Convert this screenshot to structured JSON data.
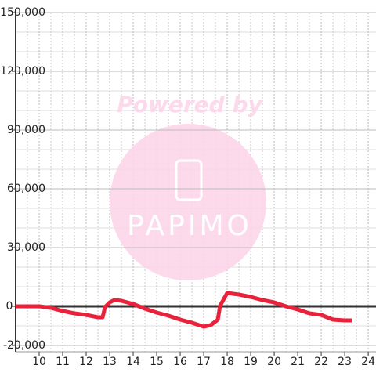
{
  "chart_data": {
    "type": "line",
    "annotations": {
      "line1": "Powered by",
      "line2": "PAPIMO"
    },
    "x": [
      9,
      9.5,
      10,
      10.3,
      10.5,
      11,
      11.5,
      12,
      12.5,
      12.7,
      12.8,
      13,
      13.2,
      13.5,
      14,
      14.5,
      15,
      15.5,
      16,
      16.5,
      17,
      17.3,
      17.6,
      17.7,
      18,
      18.5,
      19,
      19.5,
      20,
      20.5,
      21,
      21.5,
      22,
      22.5,
      23,
      23.3
    ],
    "series": [
      {
        "color": "#e8223a",
        "values": [
          0,
          0,
          0,
          -400,
          -800,
          -2400,
          -3600,
          -4400,
          -5600,
          -5600,
          -400,
          2000,
          3200,
          2800,
          1200,
          -1200,
          -3200,
          -4800,
          -6800,
          -8400,
          -10400,
          -9600,
          -6800,
          400,
          6800,
          6000,
          4800,
          3200,
          2000,
          0,
          -1600,
          -3600,
          -4400,
          -6800,
          -7200,
          -7200
        ]
      }
    ],
    "xlim": [
      9,
      24.33
    ],
    "xticks": [
      10,
      11,
      12,
      13,
      14,
      15,
      16,
      17,
      18,
      19,
      20,
      21,
      22,
      23,
      24
    ],
    "ylim": [
      -20000,
      150000
    ],
    "yticks": [
      {
        "value": -20000,
        "label": "-20,000"
      },
      0,
      {
        "value": 30000,
        "label": "30,000"
      },
      {
        "value": 60000,
        "label": "60,000"
      },
      {
        "value": 90000,
        "label": "90,000"
      },
      {
        "value": 120000,
        "label": "120,000"
      },
      {
        "value": 150000,
        "label": "150,000"
      }
    ],
    "yminorticks": [
      -10000,
      10000,
      20000,
      40000,
      50000,
      70000,
      80000,
      100000,
      110000,
      130000,
      140000
    ],
    "grid": true
  }
}
